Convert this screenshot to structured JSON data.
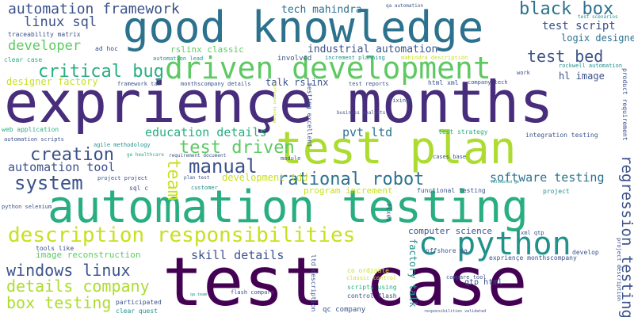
{
  "colors": {
    "background": "#ffffff",
    "palette_viridis": [
      "#440154",
      "#472d7b",
      "#3b528b",
      "#2c728e",
      "#21918c",
      "#28ae80",
      "#5ec962",
      "#addc30",
      "#fde725"
    ]
  },
  "words": [
    {
      "id": "w1",
      "text": "test case",
      "color": "#440154"
    },
    {
      "id": "w2",
      "text": "expriençe months",
      "color": "#472d7b"
    },
    {
      "id": "w3",
      "text": "automation testing",
      "color": "#28ae80"
    },
    {
      "id": "w4",
      "text": "good knowledge",
      "color": "#2c728e"
    },
    {
      "id": "w5",
      "text": "test plan",
      "color": "#addc30"
    },
    {
      "id": "w6",
      "text": "driven development",
      "color": "#5ec962"
    },
    {
      "id": "w7",
      "text": "description responsibilities",
      "color": "#c8e020"
    },
    {
      "id": "w8",
      "text": "c python",
      "color": "#21918c"
    },
    {
      "id": "w9",
      "text": "automation framework",
      "color": "#3b528b"
    },
    {
      "id": "w10",
      "text": "black box",
      "color": "#2c728e"
    },
    {
      "id": "w11",
      "text": "test bed",
      "color": "#3b528b"
    },
    {
      "id": "w12",
      "text": "critical bug",
      "color": "#28ae80"
    },
    {
      "id": "w13",
      "text": "test driven",
      "color": "#5ec962"
    },
    {
      "id": "w14",
      "text": "manual",
      "color": "#3b528b"
    },
    {
      "id": "w15",
      "text": "creation",
      "color": "#3b528b"
    },
    {
      "id": "w16",
      "text": "system",
      "color": "#3b528b"
    },
    {
      "id": "w17",
      "text": "rational robot",
      "color": "#2c728e"
    },
    {
      "id": "w18",
      "text": "windows linux",
      "color": "#3b528b"
    },
    {
      "id": "w19",
      "text": "details company",
      "color": "#addc30"
    },
    {
      "id": "w20",
      "text": "box testing",
      "color": "#addc30"
    },
    {
      "id": "w21",
      "text": "linux sql",
      "color": "#3b528b"
    },
    {
      "id": "w22",
      "text": "developer",
      "color": "#5ec962"
    },
    {
      "id": "w23",
      "text": "education details",
      "color": "#28ae80"
    },
    {
      "id": "w24",
      "text": "software testing",
      "color": "#2c728e"
    },
    {
      "id": "w25",
      "text": "regression testing",
      "color": "#3b528b"
    },
    {
      "id": "w26",
      "text": "team",
      "color": "#c8e020"
    },
    {
      "id": "w27",
      "text": "skill details",
      "color": "#3b528b"
    },
    {
      "id": "w28",
      "text": "automation tool",
      "color": "#3b528b"
    },
    {
      "id": "w29",
      "text": "test script",
      "color": "#3b528b"
    },
    {
      "id": "w30",
      "text": "logix designer",
      "color": "#2c728e"
    },
    {
      "id": "w31",
      "text": "hl image",
      "color": "#3b528b"
    },
    {
      "id": "w32",
      "text": "industrial automation",
      "color": "#3b528b"
    },
    {
      "id": "w33",
      "text": "pvt ltd",
      "color": "#2c728e"
    },
    {
      "id": "w34",
      "text": "tech mahindra",
      "color": "#2c728e"
    },
    {
      "id": "w35",
      "text": "development tdd",
      "color": "#c8e020"
    },
    {
      "id": "w36",
      "text": "rslinx classic",
      "color": "#5ec962"
    },
    {
      "id": "w37",
      "text": "talk rslinx",
      "color": "#3b528b"
    },
    {
      "id": "w38",
      "text": "designer factory",
      "color": "#c8e020"
    },
    {
      "id": "w39",
      "text": "image reconstruction",
      "color": "#5ec962"
    },
    {
      "id": "w40",
      "text": "program increment",
      "color": "#c8e020"
    },
    {
      "id": "w41",
      "text": "computer science",
      "color": "#3b528b"
    },
    {
      "id": "w42",
      "text": "factory talk",
      "color": "#21918c"
    },
    {
      "id": "w43",
      "text": "qtp html",
      "color": "#3b528b"
    },
    {
      "id": "w44",
      "text": "traceability matrix",
      "color": "#3b528b"
    },
    {
      "id": "w45",
      "text": "ad hoc",
      "color": "#3b528b"
    },
    {
      "id": "w46",
      "text": "clear case",
      "color": "#28ae80"
    },
    {
      "id": "w47",
      "text": "automation lead",
      "color": "#21918c"
    },
    {
      "id": "w48",
      "text": "involved",
      "color": "#3b528b"
    },
    {
      "id": "w49",
      "text": "increment planning",
      "color": "#21918c"
    },
    {
      "id": "w50",
      "text": "mahindra description",
      "color": "#c8e020"
    },
    {
      "id": "w51",
      "text": "work",
      "color": "#3b528b"
    },
    {
      "id": "w52",
      "text": "rockwell automation",
      "color": "#21918c"
    },
    {
      "id": "w53",
      "text": "framework taf",
      "color": "#3b528b"
    },
    {
      "id": "w54",
      "text": "monthscompany details",
      "color": "#3b528b"
    },
    {
      "id": "w55",
      "text": "test reports",
      "color": "#3b528b"
    },
    {
      "id": "w56",
      "text": "html xml",
      "color": "#3b528b"
    },
    {
      "id": "w57",
      "text": "company tech",
      "color": "#3b528b"
    },
    {
      "id": "w58",
      "text": "product requirement",
      "color": "#3b528b"
    },
    {
      "id": "w59",
      "text": "fixing",
      "color": "#3b528b"
    },
    {
      "id": "w60",
      "text": "business analysts",
      "color": "#3b528b"
    },
    {
      "id": "w61",
      "text": "test strategy",
      "color": "#28ae80"
    },
    {
      "id": "w62",
      "text": "integration testing",
      "color": "#3b528b"
    },
    {
      "id": "w63",
      "text": "web application",
      "color": "#28ae80"
    },
    {
      "id": "w64",
      "text": "automation scripts",
      "color": "#3b528b"
    },
    {
      "id": "w65",
      "text": "agile methodology",
      "color": "#21918c"
    },
    {
      "id": "w66",
      "text": "requirement document",
      "color": "#3b528b"
    },
    {
      "id": "w67",
      "text": "module",
      "color": "#3b528b"
    },
    {
      "id": "w68",
      "text": "cases base",
      "color": "#3b528b"
    },
    {
      "id": "w69",
      "text": "project project",
      "color": "#3b528b"
    },
    {
      "id": "w70",
      "text": "plan test",
      "color": "#3b528b"
    },
    {
      "id": "w71",
      "text": "sql c",
      "color": "#3b528b"
    },
    {
      "id": "w72",
      "text": "customer",
      "color": "#21918c"
    },
    {
      "id": "w73",
      "text": "functional testing",
      "color": "#3b528b"
    },
    {
      "id": "w74",
      "text": "project",
      "color": "#21918c"
    },
    {
      "id": "w75",
      "text": "python selenium",
      "color": "#3b528b"
    },
    {
      "id": "w76",
      "text": "xml qtp",
      "color": "#3b528b"
    },
    {
      "id": "w77",
      "text": "offshore qa",
      "color": "#3b528b"
    },
    {
      "id": "w78",
      "text": "develop",
      "color": "#3b528b"
    },
    {
      "id": "w79",
      "text": "expriençe monthscompany",
      "color": "#3b528b"
    },
    {
      "id": "w80",
      "text": "tools like",
      "color": "#3b528b"
    },
    {
      "id": "w81",
      "text": "co ordinate",
      "color": "#c8e020"
    },
    {
      "id": "w82",
      "text": "classic control",
      "color": "#c8e020"
    },
    {
      "id": "w83",
      "text": "compare tool",
      "color": "#3b528b"
    },
    {
      "id": "w84",
      "text": "participated",
      "color": "#3b528b"
    },
    {
      "id": "w85",
      "text": "clear quest",
      "color": "#21918c"
    },
    {
      "id": "w86",
      "text": "flash compare",
      "color": "#3b528b"
    },
    {
      "id": "w87",
      "text": "scripts using",
      "color": "#28ae80"
    },
    {
      "id": "w88",
      "text": "control flash",
      "color": "#3b528b"
    },
    {
      "id": "w89",
      "text": "qc company",
      "color": "#3b528b"
    },
    {
      "id": "w90",
      "text": "responsibilities validated",
      "color": "#3b528b"
    },
    {
      "id": "w91",
      "text": "qa automation",
      "color": "#3b528b"
    },
    {
      "id": "w92",
      "text": "test scenarios",
      "color": "#21918c"
    },
    {
      "id": "w93",
      "text": "ge healthcare",
      "color": "#28ae80"
    },
    {
      "id": "w94",
      "text": "validated ge",
      "color": "#21918c"
    },
    {
      "id": "w95",
      "text": "qa team",
      "color": "#21918c"
    },
    {
      "id": "w96",
      "text": "testing excellent",
      "color": "#3b528b"
    },
    {
      "id": "w97",
      "text": "ltd description",
      "color": "#3b528b"
    },
    {
      "id": "w98",
      "text": "fixes",
      "color": "#3b528b"
    },
    {
      "id": "w99",
      "text": "project description",
      "color": "#3b528b"
    },
    {
      "id": "w100",
      "text": "performed testing",
      "color": "#c8e020"
    }
  ]
}
